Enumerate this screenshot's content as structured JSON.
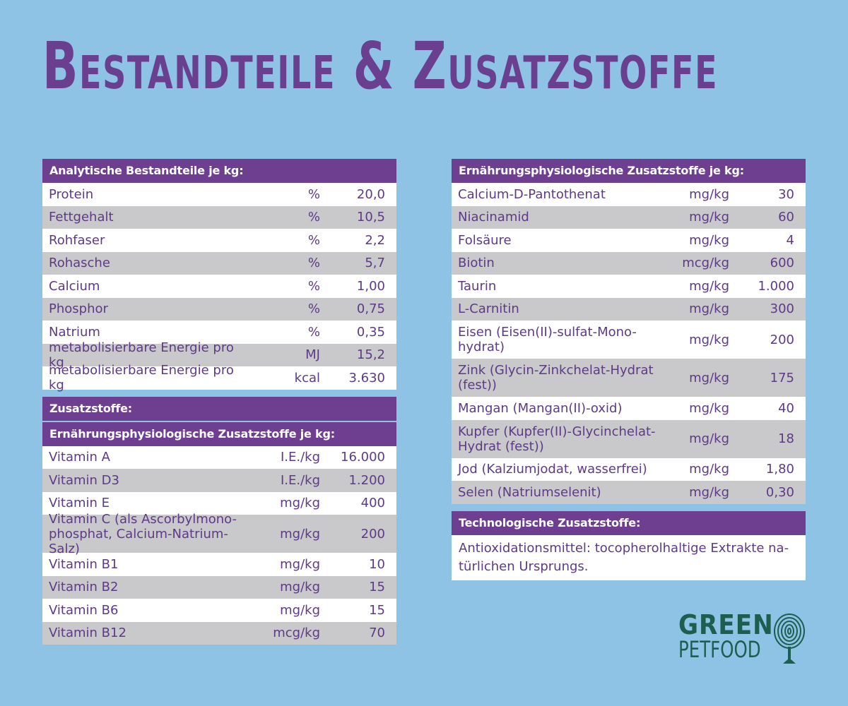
{
  "title": "Bestandteile & Zusatzstoffe",
  "analytic": {
    "header": "Analytische Bestandteile je kg:",
    "rows": [
      {
        "name": "Protein",
        "unit": "%",
        "value": "20,0"
      },
      {
        "name": "Fettgehalt",
        "unit": "%",
        "value": "10,5"
      },
      {
        "name": "Rohfaser",
        "unit": "%",
        "value": "2,2"
      },
      {
        "name": "Rohasche",
        "unit": "%",
        "value": "5,7"
      },
      {
        "name": "Calcium",
        "unit": "%",
        "value": "1,00"
      },
      {
        "name": "Phosphor",
        "unit": "%",
        "value": "0,75"
      },
      {
        "name": "Natrium",
        "unit": "%",
        "value": "0,35"
      },
      {
        "name": "metabolisierbare Energie pro kg",
        "unit": "MJ",
        "value": "15,2"
      },
      {
        "name": "metabolisierbare Energie pro kg",
        "unit": "kcal",
        "value": "3.630"
      }
    ]
  },
  "additives": {
    "header": "Zusatzstoffe:",
    "subheader": "Ernährungsphysiologische Zusatzstoffe je kg:",
    "rows": [
      {
        "name": "Vitamin A",
        "unit": "I.E./kg",
        "value": "16.000"
      },
      {
        "name": "Vitamin D3",
        "unit": "I.E./kg",
        "value": "1.200"
      },
      {
        "name": "Vitamin E",
        "unit": "mg/kg",
        "value": "400"
      },
      {
        "name": "Vitamin C (als Ascorbylmono-\nphosphat, Calcium-Natrium-Salz)",
        "unit": "mg/kg",
        "value": "200",
        "tall": true
      },
      {
        "name": "Vitamin B1",
        "unit": "mg/kg",
        "value": "10"
      },
      {
        "name": "Vitamin B2",
        "unit": "mg/kg",
        "value": "15"
      },
      {
        "name": "Vitamin B6",
        "unit": "mg/kg",
        "value": "15"
      },
      {
        "name": "Vitamin B12",
        "unit": "mcg/kg",
        "value": "70"
      }
    ]
  },
  "nutritional": {
    "header": "Ernährungsphysiologische Zusatzstoffe je kg:",
    "rows": [
      {
        "name": "Calcium-D-Pantothenat",
        "unit": "mg/kg",
        "value": "30"
      },
      {
        "name": "Niacinamid",
        "unit": "mg/kg",
        "value": "60"
      },
      {
        "name": "Folsäure",
        "unit": "mg/kg",
        "value": "4"
      },
      {
        "name": "Biotin",
        "unit": "mcg/kg",
        "value": "600"
      },
      {
        "name": "Taurin",
        "unit": "mg/kg",
        "value": "1.000"
      },
      {
        "name": "L-Carnitin",
        "unit": "mg/kg",
        "value": "300"
      },
      {
        "name": "Eisen (Eisen(II)-sulfat-Mono-\nhydrat)",
        "unit": "mg/kg",
        "value": "200",
        "tall": true
      },
      {
        "name": "Zink (Glycin-Zinkchelat-Hydrat\n(fest))",
        "unit": "mg/kg",
        "value": "175",
        "tall": true
      },
      {
        "name": "Mangan (Mangan(II)-oxid)",
        "unit": "mg/kg",
        "value": "40"
      },
      {
        "name": "Kupfer (Kupfer(II)-Glycinchelat-\nHydrat (fest))",
        "unit": "mg/kg",
        "value": "18",
        "tall": true
      },
      {
        "name": "Jod (Kalziumjodat, wasserfrei)",
        "unit": "mg/kg",
        "value": "1,80"
      },
      {
        "name": "Selen (Natriumselenit)",
        "unit": "mg/kg",
        "value": "0,30"
      }
    ]
  },
  "technological": {
    "header": "Technologische Zusatzstoffe:",
    "text": "Antioxidationsmittel: tocopherolhaltige Extrakte na-\ntürlichen Ursprungs."
  },
  "logo": {
    "line1": "GREEN",
    "line2": "PETFOOD",
    "icon": "fingerprint-tree-icon",
    "color": "#1d5e4e"
  },
  "colors": {
    "background": "#8ec3e6",
    "header": "#6e3f90",
    "text": "#5e3a86",
    "row_alt": "#c9c9cb"
  }
}
